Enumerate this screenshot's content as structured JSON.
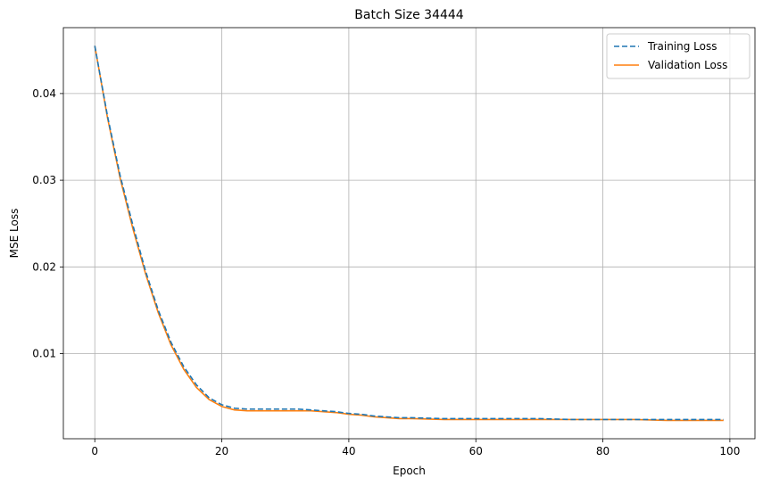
{
  "chart_data": {
    "type": "line",
    "title": "Batch Size 34444",
    "xlabel": "Epoch",
    "ylabel": "MSE Loss",
    "xlim": [
      -4.95,
      103.95
    ],
    "ylim": [
      0.00018,
      0.0476
    ],
    "xticks": [
      0,
      20,
      40,
      60,
      80,
      100
    ],
    "yticks": [
      0.01,
      0.02,
      0.03,
      0.04
    ],
    "xtick_labels": [
      "0",
      "20",
      "40",
      "60",
      "80",
      "100"
    ],
    "ytick_labels": [
      "0.01",
      "0.02",
      "0.03",
      "0.04"
    ],
    "grid": true,
    "legend_position": "top-right",
    "series": [
      {
        "name": "Training Loss",
        "color": "#1f77b4",
        "style": "dashed",
        "x": [
          0,
          2,
          4,
          6,
          8,
          10,
          12,
          14,
          16,
          18,
          20,
          22,
          24,
          26,
          28,
          30,
          32,
          34,
          36,
          38,
          40,
          42,
          44,
          46,
          48,
          50,
          55,
          60,
          65,
          70,
          75,
          80,
          85,
          90,
          95,
          99
        ],
        "y": [
          0.0455,
          0.0374,
          0.0305,
          0.0248,
          0.0195,
          0.015,
          0.0113,
          0.0085,
          0.0064,
          0.0049,
          0.0041,
          0.0037,
          0.0036,
          0.0036,
          0.0036,
          0.0036,
          0.0036,
          0.0035,
          0.0034,
          0.0033,
          0.0031,
          0.003,
          0.0028,
          0.0027,
          0.0026,
          0.0026,
          0.0025,
          0.0025,
          0.0025,
          0.0025,
          0.0024,
          0.0024,
          0.0024,
          0.0024,
          0.0024,
          0.0024
        ]
      },
      {
        "name": "Validation Loss",
        "color": "#ff7f0e",
        "style": "solid",
        "x": [
          0,
          2,
          4,
          6,
          8,
          10,
          12,
          14,
          16,
          18,
          20,
          22,
          24,
          26,
          28,
          30,
          32,
          34,
          36,
          38,
          40,
          42,
          44,
          46,
          48,
          50,
          55,
          60,
          65,
          70,
          75,
          80,
          85,
          90,
          95,
          99
        ],
        "y": [
          0.0455,
          0.0372,
          0.0302,
          0.0244,
          0.0192,
          0.0147,
          0.011,
          0.0082,
          0.0061,
          0.0047,
          0.0039,
          0.0035,
          0.0034,
          0.0034,
          0.0034,
          0.0034,
          0.0034,
          0.0034,
          0.0033,
          0.0032,
          0.003,
          0.0029,
          0.0027,
          0.0026,
          0.0025,
          0.0025,
          0.0024,
          0.0024,
          0.0024,
          0.0024,
          0.0024,
          0.0024,
          0.0024,
          0.0023,
          0.0023,
          0.0023
        ]
      }
    ]
  }
}
